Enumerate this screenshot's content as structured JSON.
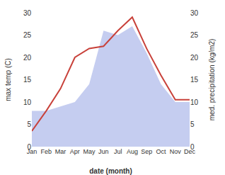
{
  "chart_data": {
    "type": "line",
    "categories": [
      "Jan",
      "Feb",
      "Mar",
      "Apr",
      "May",
      "Jun",
      "Jul",
      "Aug",
      "Sep",
      "Oct",
      "Nov",
      "Dec"
    ],
    "series": [
      {
        "type": "area",
        "color": "#c5cdf0",
        "axis": "y2",
        "values": [
          8.0,
          8.0,
          9.0,
          10.0,
          14.0,
          26.0,
          25.0,
          27.0,
          21.0,
          14.0,
          10.0,
          10.0
        ]
      },
      {
        "type": "line",
        "color": "#c8413a",
        "values": [
          3.5,
          8.0,
          13.0,
          20.0,
          22.0,
          22.5,
          26.0,
          29.0,
          22.0,
          16.0,
          10.5,
          10.5
        ]
      }
    ],
    "xlabel": "date (month)",
    "ylabel": "max temp (C)",
    "y2label": "med. precipitation (kg/m2)",
    "ylim": [
      0,
      30
    ],
    "yticks": [
      0,
      5,
      10,
      15,
      20,
      25,
      30
    ],
    "y2lim": [
      0,
      30
    ],
    "y2ticks": [
      0,
      5,
      10,
      15,
      20,
      25,
      30
    ],
    "grid": false
  }
}
